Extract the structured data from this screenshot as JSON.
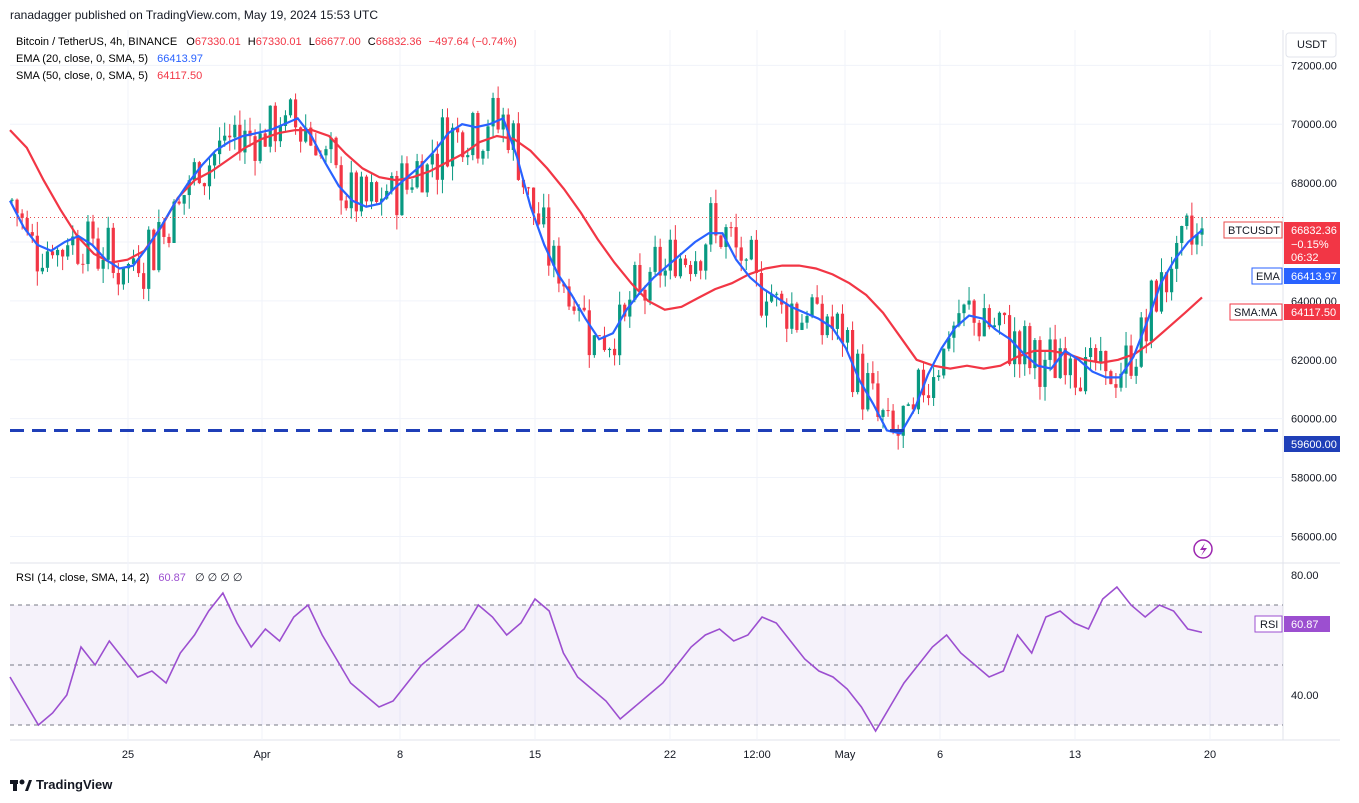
{
  "header": {
    "publisher_line": "ranadagger published on TradingView.com, May 19, 2024 15:53 UTC"
  },
  "footer": {
    "brand": "TradingView"
  },
  "chart_data": {
    "type": "candlestick",
    "symbol_line": {
      "name": "Bitcoin / TetherUS, 4h, BINANCE",
      "o_label": "O",
      "o": "67330.01",
      "h_label": "H",
      "h": "67330.01",
      "l_label": "L",
      "l": "66677.00",
      "c_label": "C",
      "c": "66832.36",
      "change": "−497.64 (−0.74%)"
    },
    "ema_line": {
      "label": "EMA (20, close, 0, SMA, 5)",
      "value": "66413.97"
    },
    "sma_line": {
      "label": "SMA (50, close, 0, SMA, 5)",
      "value": "64117.50"
    },
    "currency": "USDT",
    "y_range": [
      55200,
      73200
    ],
    "y_ticks": [
      "72000.00",
      "70000.00",
      "68000.00",
      "66000.00",
      "64000.00",
      "62000.00",
      "60000.00",
      "58000.00",
      "56000.00"
    ],
    "x_ticks": [
      "25",
      "Apr",
      "8",
      "15",
      "22",
      "12:00",
      "May",
      "6",
      "13",
      "20"
    ],
    "support_level": 59600,
    "support_label": "59600.00",
    "last_price_label": {
      "name": "BTCUSDT",
      "price": "66832.36",
      "pct": "−0.15%",
      "countdown": "06:32"
    },
    "ema_badge": {
      "name": "EMA",
      "value": "66413.97"
    },
    "sma_badge": {
      "name": "SMA:MA",
      "value": "64117.50"
    },
    "ema_series": [
      67400,
      66500,
      65900,
      65700,
      66000,
      66200,
      65900,
      65400,
      65100,
      65200,
      65800,
      66500,
      67300,
      68000,
      68600,
      69100,
      69400,
      69600,
      69700,
      69800,
      70000,
      70200,
      69600,
      68700,
      67900,
      67400,
      67200,
      67300,
      67800,
      68200,
      68600,
      69100,
      69700,
      70000,
      69900,
      70000,
      70200,
      68900,
      67200,
      65900,
      64900,
      64200,
      63400,
      62700,
      62900,
      63700,
      64300,
      64800,
      65200,
      65600,
      66000,
      66300,
      66300,
      65400,
      64800,
      64400,
      64100,
      63800,
      63600,
      63400,
      63100,
      62400,
      61300,
      60500,
      59600,
      59500,
      60300,
      61500,
      62400,
      63100,
      63500,
      63400,
      63000,
      62700,
      62200,
      61800,
      61700,
      62300,
      62000,
      61600,
      61400,
      61400,
      62100,
      63300,
      64600,
      65400,
      66000,
      66400
    ],
    "sma_series": [
      69800,
      69200,
      68100,
      67100,
      66200,
      65600,
      65300,
      65400,
      65700,
      66500,
      67500,
      68100,
      68400,
      68800,
      69200,
      69500,
      69700,
      69800,
      69800,
      69600,
      69000,
      68500,
      68200,
      68100,
      68200,
      68400,
      68700,
      69000,
      69400,
      69600,
      69500,
      69100,
      68500,
      67800,
      67000,
      66100,
      65300,
      64600,
      64000,
      63700,
      63800,
      64100,
      64400,
      64600,
      64900,
      65100,
      65200,
      65200,
      65100,
      64900,
      64600,
      64200,
      63600,
      62800,
      62000,
      61800,
      61700,
      61800,
      61700,
      61800,
      62100,
      62300,
      62300,
      62200,
      62000,
      61900,
      62000,
      62200,
      62600,
      63100,
      63600,
      64117.5
    ],
    "rsi_line": {
      "label": "RSI (14, close, SMA, 14, 2)",
      "value": "60.87",
      "extras": "∅ ∅ ∅ ∅"
    },
    "rsi_badge": {
      "name": "RSI",
      "value": "60.87"
    },
    "rsi_y_range": [
      25,
      83
    ],
    "rsi_ticks": [
      "80.00",
      "40.00"
    ],
    "rsi_bands": [
      70,
      50,
      30
    ],
    "rsi_series": [
      46,
      38,
      30,
      34,
      40,
      56,
      50,
      58,
      52,
      46,
      48,
      44,
      54,
      60,
      68,
      74,
      64,
      56,
      62,
      58,
      66,
      70,
      60,
      52,
      44,
      40,
      36,
      38,
      44,
      50,
      54,
      58,
      62,
      70,
      66,
      60,
      64,
      72,
      68,
      54,
      46,
      42,
      38,
      32,
      36,
      40,
      44,
      50,
      56,
      60,
      62,
      58,
      60,
      66,
      64,
      58,
      52,
      48,
      46,
      42,
      36,
      28,
      36,
      44,
      50,
      56,
      60,
      54,
      50,
      46,
      48,
      60,
      54,
      66,
      68,
      64,
      62,
      72,
      76,
      70,
      66,
      70,
      68,
      62,
      60.87
    ]
  }
}
